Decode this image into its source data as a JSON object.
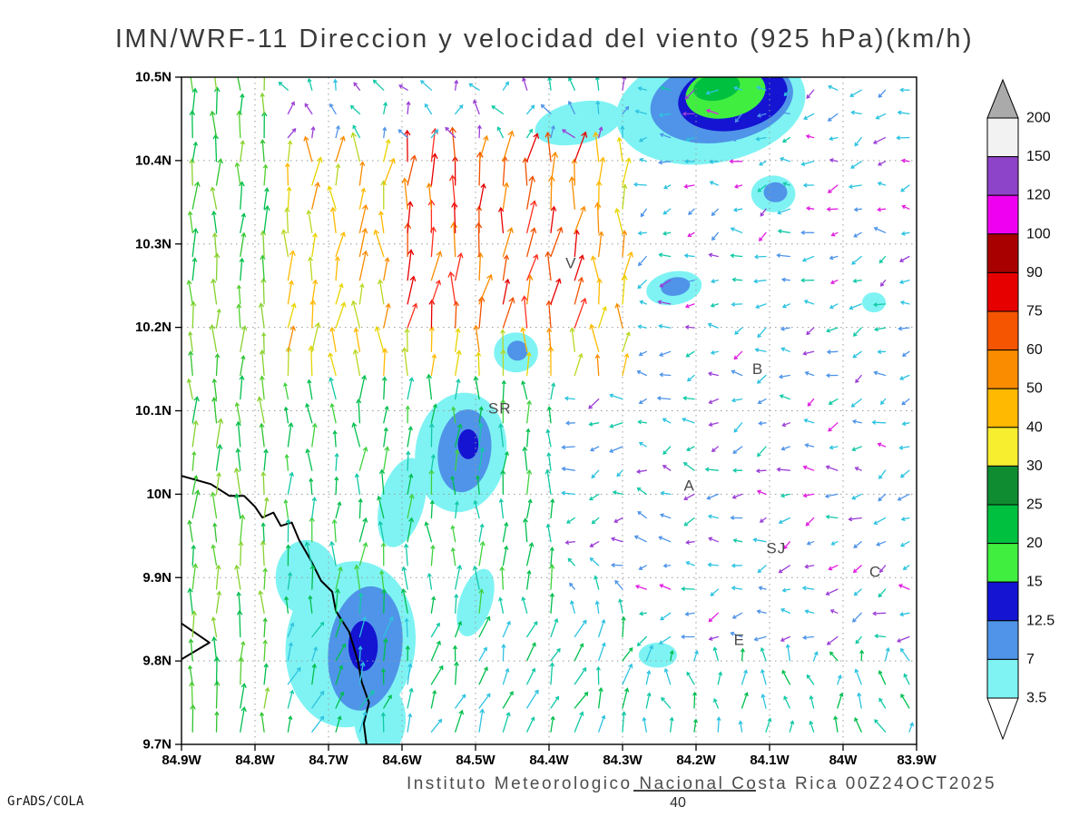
{
  "title": "IMN/WRF-11 Direccion y velocidad del viento (925 hPa)(km/h)",
  "credit": "GrADS/COLA",
  "footer": "Instituto Meteorologico Nacional Costa Rica 00Z24OCT2025",
  "reference_vector": {
    "label": "40"
  },
  "chart_data": {
    "type": "vector_field",
    "model": "IMN/WRF-11",
    "field": "Direccion y velocidad del viento",
    "pressure_level": "925 hPa",
    "units": "km/h",
    "valid_time": "00Z24OCT2025",
    "xlim": [
      -84.9,
      -83.9
    ],
    "ylim": [
      9.7,
      10.5
    ],
    "grid": "dotted",
    "x_tick_values": [
      -84.9,
      -84.8,
      -84.7,
      -84.6,
      -84.5,
      -84.4,
      -84.3,
      -84.2,
      -84.1,
      -84.0,
      -83.9
    ],
    "x_tick_labels": [
      "84.9W",
      "84.8W",
      "84.7W",
      "84.6W",
      "84.5W",
      "84.4W",
      "84.3W",
      "84.2W",
      "84.1W",
      "84W",
      "83.9W"
    ],
    "y_tick_values": [
      9.7,
      9.8,
      9.9,
      10.0,
      10.1,
      10.2,
      10.3,
      10.4,
      10.5
    ],
    "y_tick_labels": [
      "9.7N",
      "9.8N",
      "9.9N",
      "10N",
      "10.1N",
      "10.2N",
      "10.3N",
      "10.4N",
      "10.5N"
    ],
    "colorbar": {
      "levels": [
        3.5,
        7,
        12.5,
        15,
        20,
        25,
        30,
        40,
        50,
        60,
        75,
        90,
        100,
        120,
        150,
        200
      ],
      "segment_colors": [
        "#7ff3f3",
        "#4f94e8",
        "#1414d2",
        "#40ee40",
        "#00c040",
        "#0f8c32",
        "#f8ee30",
        "#ffb900",
        "#fa8c00",
        "#f55500",
        "#e60000",
        "#a80000",
        "#f000f0",
        "#8e44c8",
        "#f2f2f2"
      ],
      "below_color": "#ffffff",
      "above_color": "#aaaaaa"
    },
    "stations": [
      {
        "label": "V",
        "lon": -84.37,
        "lat": 10.271
      },
      {
        "label": "B",
        "lon": -84.116,
        "lat": 10.144
      },
      {
        "label": "SR",
        "lon": -84.467,
        "lat": 10.097
      },
      {
        "label": "A",
        "lon": -84.209,
        "lat": 10.004
      },
      {
        "label": "SJ",
        "lon": -84.091,
        "lat": 9.929
      },
      {
        "label": "C",
        "lon": -83.956,
        "lat": 9.901
      },
      {
        "label": "E",
        "lon": -84.141,
        "lat": 9.819
      }
    ],
    "shaded_regions": [
      {
        "lon": -84.36,
        "lat": 10.445,
        "rx": 0.06,
        "ry": 0.025,
        "rot": -12,
        "color": "#7ff3f3",
        "range": "3.5-7"
      },
      {
        "lon": -84.18,
        "lat": 10.465,
        "rx": 0.13,
        "ry": 0.068,
        "rot": -10,
        "color": "#7ff3f3",
        "range": "3.5-7"
      },
      {
        "lon": -84.165,
        "lat": 10.472,
        "rx": 0.098,
        "ry": 0.05,
        "rot": -10,
        "color": "#4f94e8",
        "range": "7-12.5"
      },
      {
        "lon": -84.15,
        "lat": 10.476,
        "rx": 0.075,
        "ry": 0.04,
        "rot": -10,
        "color": "#1414d2",
        "range": "12.5-15"
      },
      {
        "lon": -84.16,
        "lat": 10.481,
        "rx": 0.055,
        "ry": 0.03,
        "rot": -10,
        "color": "#40ee40",
        "range": "15-20"
      },
      {
        "lon": -84.172,
        "lat": 10.488,
        "rx": 0.032,
        "ry": 0.016,
        "rot": -10,
        "color": "#00c040",
        "range": "20-25"
      },
      {
        "lon": -84.095,
        "lat": 10.36,
        "rx": 0.03,
        "ry": 0.022,
        "rot": 0,
        "color": "#7ff3f3",
        "range": "3.5-7"
      },
      {
        "lon": -84.092,
        "lat": 10.362,
        "rx": 0.016,
        "ry": 0.012,
        "rot": 0,
        "color": "#4f94e8",
        "range": "7-12.5"
      },
      {
        "lon": -84.23,
        "lat": 10.247,
        "rx": 0.038,
        "ry": 0.02,
        "rot": -10,
        "color": "#7ff3f3",
        "range": "3.5-7"
      },
      {
        "lon": -84.228,
        "lat": 10.249,
        "rx": 0.02,
        "ry": 0.011,
        "rot": -10,
        "color": "#4f94e8",
        "range": "7-12.5"
      },
      {
        "lon": -83.958,
        "lat": 10.23,
        "rx": 0.016,
        "ry": 0.012,
        "rot": 0,
        "color": "#7ff3f3",
        "range": "3.5-7"
      },
      {
        "lon": -84.445,
        "lat": 10.17,
        "rx": 0.03,
        "ry": 0.024,
        "rot": 0,
        "color": "#7ff3f3",
        "range": "3.5-7"
      },
      {
        "lon": -84.443,
        "lat": 10.172,
        "rx": 0.014,
        "ry": 0.012,
        "rot": 0,
        "color": "#4f94e8",
        "range": "7-12.5"
      },
      {
        "lon": -84.52,
        "lat": 10.05,
        "rx": 0.062,
        "ry": 0.072,
        "rot": 8,
        "color": "#7ff3f3",
        "range": "3.5-7"
      },
      {
        "lon": -84.515,
        "lat": 10.052,
        "rx": 0.036,
        "ry": 0.05,
        "rot": 8,
        "color": "#4f94e8",
        "range": "7-12.5"
      },
      {
        "lon": -84.51,
        "lat": 10.06,
        "rx": 0.014,
        "ry": 0.018,
        "rot": 0,
        "color": "#1414d2",
        "range": "12.5-15"
      },
      {
        "lon": -84.6,
        "lat": 9.99,
        "rx": 0.03,
        "ry": 0.055,
        "rot": 15,
        "color": "#7ff3f3",
        "range": "3.5-7"
      },
      {
        "lon": -84.5,
        "lat": 9.87,
        "rx": 0.022,
        "ry": 0.042,
        "rot": 18,
        "color": "#7ff3f3",
        "range": "3.5-7"
      },
      {
        "lon": -84.67,
        "lat": 9.82,
        "rx": 0.088,
        "ry": 0.1,
        "rot": 8,
        "color": "#7ff3f3",
        "range": "3.5-7"
      },
      {
        "lon": -84.73,
        "lat": 9.9,
        "rx": 0.042,
        "ry": 0.045,
        "rot": 0,
        "color": "#7ff3f3",
        "range": "3.5-7"
      },
      {
        "lon": -84.63,
        "lat": 9.73,
        "rx": 0.035,
        "ry": 0.045,
        "rot": 0,
        "color": "#7ff3f3",
        "range": "3.5-7"
      },
      {
        "lon": -84.65,
        "lat": 9.815,
        "rx": 0.05,
        "ry": 0.075,
        "rot": 8,
        "color": "#4f94e8",
        "range": "7-12.5"
      },
      {
        "lon": -84.653,
        "lat": 9.818,
        "rx": 0.02,
        "ry": 0.03,
        "rot": 0,
        "color": "#1414d2",
        "range": "12.5-15"
      },
      {
        "lon": -84.252,
        "lat": 9.807,
        "rx": 0.026,
        "ry": 0.015,
        "rot": 0,
        "color": "#7ff3f3",
        "range": "3.5-7"
      }
    ],
    "arrow_grid": {
      "lon_start": -84.885,
      "dlon": 0.0325,
      "cols": 31,
      "lat_start": 9.715,
      "dlat": 0.0285,
      "rows": 28
    },
    "wind_zones": [
      {
        "name": "left-coastal-northerly",
        "x": [
          -84.91,
          -84.77
        ],
        "y": [
          9.69,
          10.51
        ],
        "angle": 90,
        "jitter": 12,
        "len": [
          20,
          31
        ],
        "colors": [
          "#2fc42f",
          "#54cf30",
          "#00bf4d",
          "#86d22e"
        ]
      },
      {
        "name": "north-edge-mixed",
        "x": [
          -84.77,
          -84.27
        ],
        "y": [
          10.425,
          10.51
        ],
        "angle": 100,
        "jitter": 55,
        "len": [
          10,
          17
        ],
        "colors": [
          "#2ec3e0",
          "#4f94e8",
          "#12c9a6",
          "#9b3fd6"
        ]
      },
      {
        "name": "strong-northerly-core",
        "x": [
          -84.6,
          -84.36
        ],
        "y": [
          10.195,
          10.4
        ],
        "angle": 83,
        "jitter": 16,
        "len": [
          27,
          38
        ],
        "colors": [
          "#f05000",
          "#e60000",
          "#fa8c00",
          "#ff3020"
        ]
      },
      {
        "name": "warm-northerly-ring",
        "x": [
          -84.77,
          -84.295
        ],
        "y": [
          10.125,
          10.425
        ],
        "angle": 88,
        "jitter": 20,
        "len": [
          22,
          33
        ],
        "colors": [
          "#e8d400",
          "#ffb900",
          "#fa8c00",
          "#b8d822"
        ]
      },
      {
        "name": "central-green-northerly",
        "x": [
          -84.77,
          -84.38
        ],
        "y": [
          9.855,
          10.125
        ],
        "angle": 90,
        "jitter": 16,
        "len": [
          17,
          27
        ],
        "colors": [
          "#00bf4d",
          "#12c9a6",
          "#3fd23f"
        ]
      },
      {
        "name": "south-central-teal",
        "x": [
          -84.77,
          -84.295
        ],
        "y": [
          9.69,
          9.855
        ],
        "angle": 72,
        "jitter": 22,
        "len": [
          15,
          25
        ],
        "colors": [
          "#12c9a6",
          "#00bf4d",
          "#2ec3e0"
        ]
      },
      {
        "name": "center-weak-mixed",
        "x": [
          -84.38,
          -84.155
        ],
        "y": [
          9.93,
          10.125
        ],
        "angle": 185,
        "jitter": 45,
        "len": [
          8,
          15
        ],
        "colors": [
          "#2ec3e0",
          "#12c9a6",
          "#9b3fd6",
          "#4f94e8"
        ]
      },
      {
        "name": "south-east-upslope",
        "x": [
          -84.275,
          -83.885
        ],
        "y": [
          9.69,
          9.805
        ],
        "angle": 100,
        "jitter": 32,
        "len": [
          10,
          18
        ],
        "colors": [
          "#12c9a6",
          "#00bf4d",
          "#2ec3e0"
        ]
      },
      {
        "name": "east-weak-easterly",
        "x": [
          -84.295,
          -83.885
        ],
        "y": [
          9.69,
          10.51
        ],
        "angle": 195,
        "jitter": 40,
        "len": [
          7,
          14
        ],
        "colors": [
          "#2ec3e0",
          "#4f94e8",
          "#12c9a6",
          "#9b3fd6",
          "#e020e0",
          "#2ec3e0",
          "#4f94e8",
          "#2ec3e0"
        ]
      },
      {
        "name": "fallback",
        "x": [
          -85.5,
          -83.0
        ],
        "y": [
          9.0,
          11.0
        ],
        "angle": 135,
        "jitter": 45,
        "len": [
          8,
          16
        ],
        "colors": [
          "#2ec3e0",
          "#12c9a6",
          "#4f94e8"
        ]
      }
    ],
    "coastline": [
      [
        -84.9,
        10.022
      ],
      [
        -84.86,
        10.012
      ],
      [
        -84.835,
        9.998
      ],
      [
        -84.815,
        9.998
      ],
      [
        -84.8,
        9.985
      ],
      [
        -84.79,
        9.972
      ],
      [
        -84.775,
        9.978
      ],
      [
        -84.765,
        9.962
      ],
      [
        -84.75,
        9.966
      ],
      [
        -84.74,
        9.945
      ],
      [
        -84.725,
        9.922
      ],
      [
        -84.71,
        9.896
      ],
      [
        -84.695,
        9.883
      ],
      [
        -84.69,
        9.86
      ],
      [
        -84.672,
        9.835
      ],
      [
        -84.66,
        9.8
      ],
      [
        -84.655,
        9.775
      ],
      [
        -84.645,
        9.75
      ],
      [
        -84.652,
        9.725
      ],
      [
        -84.648,
        9.698
      ]
    ],
    "coastline_spit": [
      [
        -84.9,
        9.845
      ],
      [
        -84.862,
        9.822
      ],
      [
        -84.9,
        9.802
      ]
    ]
  }
}
